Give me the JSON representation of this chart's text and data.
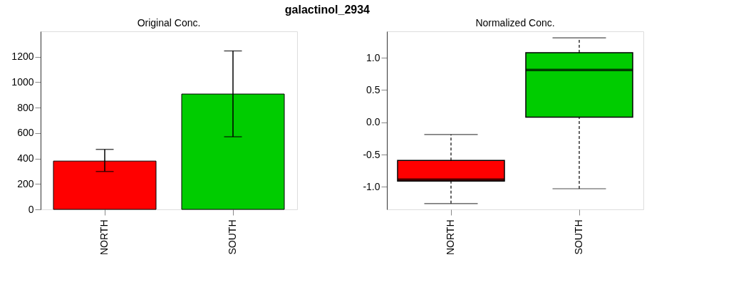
{
  "chart_data": [
    {
      "type": "bar",
      "title": "Original Conc.",
      "annotations": [
        "galactinol_2934"
      ],
      "categories": [
        "NORTH",
        "SOUTH"
      ],
      "values": [
        380,
        907
      ],
      "colors": [
        "#ff0000",
        "#00cc00"
      ],
      "errors": [
        [
          298,
          472
        ],
        [
          571,
          1246
        ]
      ],
      "ylim": [
        0,
        1400
      ],
      "yticks": [
        0,
        200,
        400,
        600,
        800,
        1000,
        1200
      ],
      "grid": false,
      "legend": false
    },
    {
      "type": "box",
      "title": "Normalized Conc.",
      "categories": [
        "NORTH",
        "SOUTH"
      ],
      "colors": [
        "#ff0000",
        "#00cc00"
      ],
      "boxes": [
        {
          "low": -1.26,
          "q1": -0.91,
          "median": -0.89,
          "q3": -0.59,
          "high": -0.19
        },
        {
          "low": -1.03,
          "q1": 0.08,
          "median": 0.81,
          "q3": 1.08,
          "high": 1.31
        }
      ],
      "ylim": [
        -1.35,
        1.41
      ],
      "yticks": [
        {
          "value": -1.0,
          "label": "-1.0"
        },
        {
          "value": -0.5,
          "label": "-0.5"
        },
        {
          "value": 0.0,
          "label": "0.0"
        },
        {
          "value": 0.5,
          "label": "0.5"
        },
        {
          "value": 1.0,
          "label": "1.0"
        }
      ],
      "grid": false,
      "legend": false
    }
  ]
}
